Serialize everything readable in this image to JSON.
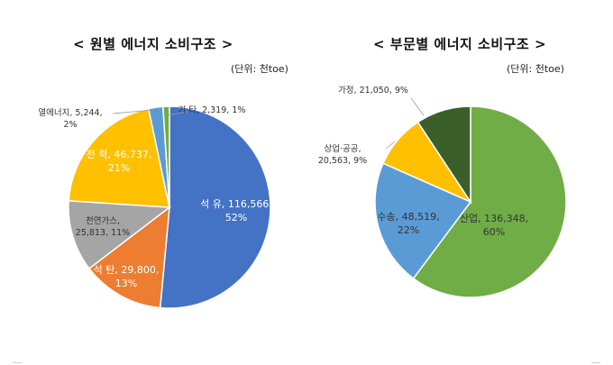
{
  "chart_data": [
    {
      "type": "pie",
      "title": "< 원별 에너지 소비구조 >",
      "unit": "(단위: 천toe)",
      "start_angle_deg": 0,
      "slices": [
        {
          "name": "석 유",
          "value": 116566,
          "percent": "52%",
          "color": "#4472C4"
        },
        {
          "name": "석 탄",
          "value": 29800,
          "percent": "13%",
          "color": "#ED7D31"
        },
        {
          "name": "천연가스",
          "value": 25813,
          "percent": "11%",
          "color": "#A5A5A5"
        },
        {
          "name": "전 력",
          "value": 46737,
          "percent": "21%",
          "color": "#FFC000"
        },
        {
          "name": "열에너지",
          "value": 5244,
          "percent": "2%",
          "color": "#5B9BD5"
        },
        {
          "name": "기 타",
          "value": 2319,
          "percent": "1%",
          "color": "#70AD47"
        }
      ],
      "labels": [
        {
          "line1": "석 유, 116,566,",
          "line2": "52%"
        },
        {
          "line1": "석 탄, 29,800,",
          "line2": "13%"
        },
        {
          "line1": "천연가스,",
          "line2": "25,813, 11%"
        },
        {
          "line1": "전 력, 46,737,",
          "line2": "21%"
        },
        {
          "line1": "열에너지, 5,244,",
          "line2": "2%"
        },
        {
          "line1": "기 타, 2,319, 1%",
          "line2": ""
        }
      ]
    },
    {
      "type": "pie",
      "title": "< 부문별 에너지 소비구조 >",
      "unit": "(단위: 천toe)",
      "start_angle_deg": 0,
      "slices": [
        {
          "name": "산업",
          "value": 136348,
          "percent": "60%",
          "color": "#70AD47"
        },
        {
          "name": "수송",
          "value": 48519,
          "percent": "22%",
          "color": "#5B9BD5"
        },
        {
          "name": "상업·공공",
          "value": 20563,
          "percent": "9%",
          "color": "#FFC000"
        },
        {
          "name": "가정",
          "value": 21050,
          "percent": "9%",
          "color": "#3A5F29"
        }
      ],
      "labels": [
        {
          "line1": "산업, 136,348,",
          "line2": "60%"
        },
        {
          "line1": "수송, 48,519,",
          "line2": "22%"
        },
        {
          "line1": "상업·공공,",
          "line2": "20,563, 9%"
        },
        {
          "line1": "가정, 21,050, 9%",
          "line2": ""
        }
      ]
    }
  ]
}
